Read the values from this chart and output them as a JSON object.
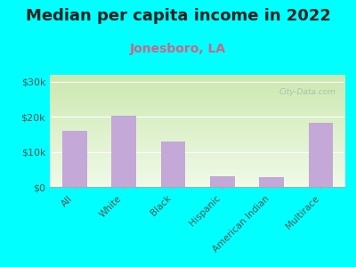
{
  "title": "Median per capita income in 2022",
  "subtitle": "Jonesboro, LA",
  "categories": [
    "All",
    "White",
    "Black",
    "Hispanic",
    "American Indian",
    "Multirace"
  ],
  "values": [
    16000,
    20200,
    13000,
    3000,
    2800,
    18200
  ],
  "bar_color": "#c4a8d8",
  "background_color": "#00FFFF",
  "title_color": "#222222",
  "subtitle_color": "#cc6688",
  "tick_label_color": "#555555",
  "ytick_labels": [
    "$0",
    "$10k",
    "$20k",
    "$30k"
  ],
  "ytick_values": [
    0,
    10000,
    20000,
    30000
  ],
  "ylim": [
    0,
    32000
  ],
  "watermark": "City-Data.com",
  "title_fontsize": 13,
  "subtitle_fontsize": 10,
  "grad_top": "#cce8b0",
  "grad_bottom": "#f0fae8"
}
